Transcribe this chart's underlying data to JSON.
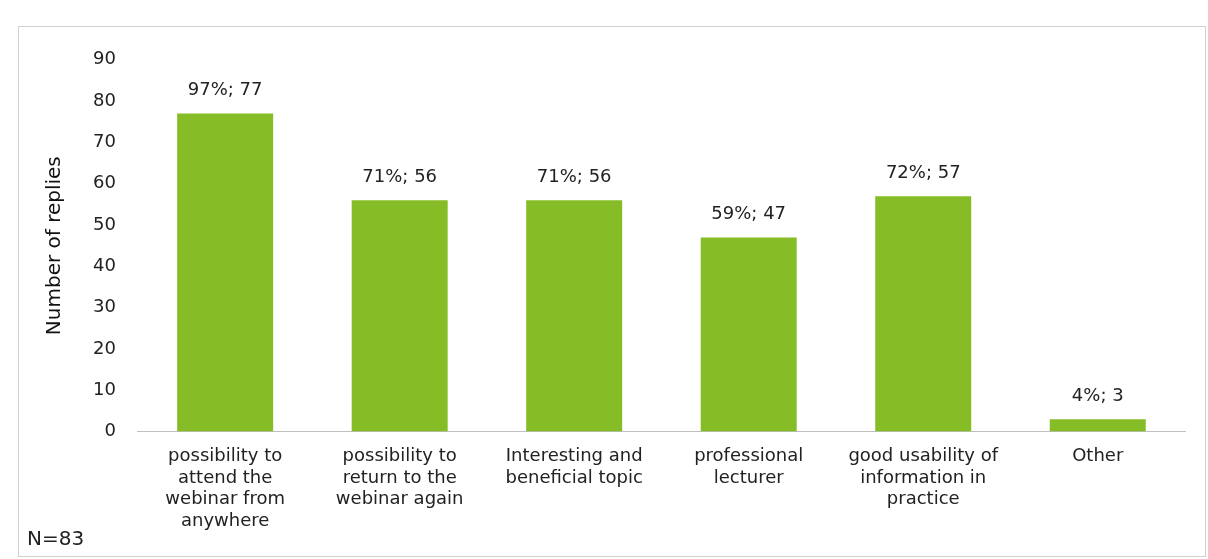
{
  "chart_data": {
    "type": "bar",
    "ylabel": "Number of replies",
    "categories": [
      "possibility to attend the webinar from anywhere",
      "possibility to return to the webinar again",
      "Interesting and beneficial topic",
      "professional lecturer",
      "good usability of information in practice",
      "Other"
    ],
    "values": [
      77,
      56,
      56,
      47,
      57,
      3
    ],
    "color": "#86bc25",
    "value_labels": [
      "97%; 77",
      "71%; 56",
      "71%; 56",
      "59%; 47",
      "72%; 57",
      "4%; 3"
    ],
    "ylim": [
      0,
      90
    ],
    "yticks": [
      0,
      10,
      20,
      30,
      40,
      50,
      60,
      70,
      80,
      90
    ],
    "grid": false,
    "legend": false,
    "annotations": [
      "N=83"
    ]
  }
}
